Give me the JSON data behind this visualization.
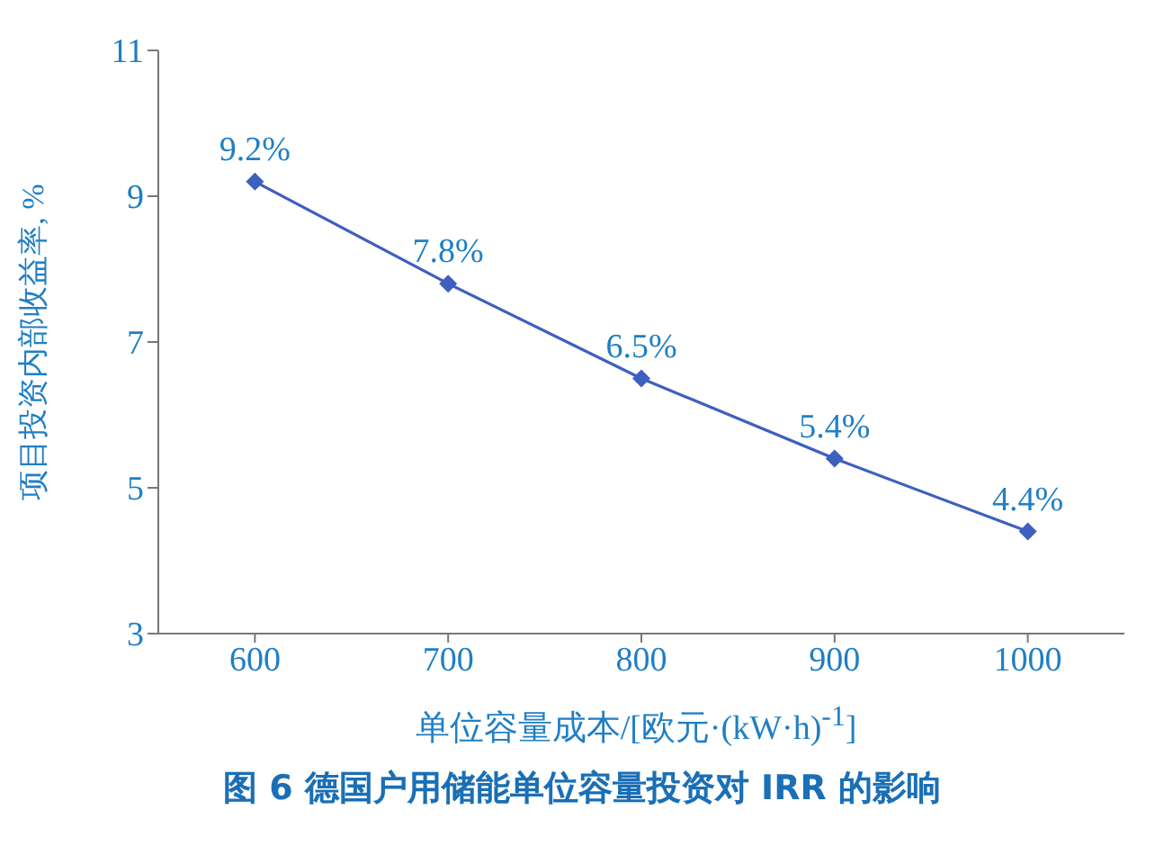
{
  "chart_data": {
    "type": "line",
    "title": "图 6  德国户用储能单位容量投资对 IRR 的影响",
    "xlabel": "单位容量成本/[欧元·(kW·h)$^{-1}$]",
    "ylabel": "项目投资内部收益率, %",
    "x": [
      600,
      700,
      800,
      900,
      1000
    ],
    "series": [
      {
        "color": "#3f5fbf",
        "values": [
          9.2,
          7.8,
          6.5,
          5.4,
          4.4
        ],
        "value_labels": [
          "9.2%",
          "7.8%",
          "6.5%",
          "5.4%",
          "4.4%"
        ]
      }
    ],
    "xlim": [
      550,
      1050
    ],
    "xticks": [
      600,
      700,
      800,
      900,
      1000
    ],
    "ylim": [
      3,
      11
    ],
    "yticks": [
      3,
      5,
      7,
      9,
      11
    ],
    "marker": "diamond",
    "line_style": "solid"
  }
}
